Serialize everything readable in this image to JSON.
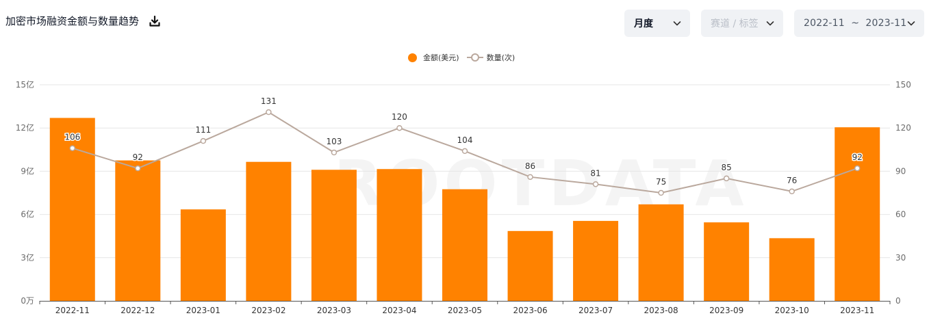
{
  "header": {
    "title": "加密市场融资金额与数量趋势",
    "download_icon": "download-icon"
  },
  "controls": {
    "period_label": "月度",
    "track_placeholder": "赛道 / 标签",
    "range_label": "2022-11  ~  2023-11"
  },
  "watermark": "ROOTDATA",
  "colors": {
    "bar": "#ff8200",
    "line": "#baa89d",
    "grid": "#e6e6e6",
    "axis_text": "#6b6b6b"
  },
  "chart_data": {
    "type": "bar",
    "legend_position": "top-center",
    "categories": [
      "2022-11",
      "2022-12",
      "2023-01",
      "2023-02",
      "2023-03",
      "2023-04",
      "2023-05",
      "2023-06",
      "2023-07",
      "2023-08",
      "2023-09",
      "2023-10",
      "2023-11"
    ],
    "series": [
      {
        "name": "金额(美元)",
        "type": "bar",
        "axis": "left",
        "values": [
          12.7,
          9.75,
          6.35,
          9.65,
          9.1,
          9.15,
          7.75,
          4.85,
          5.55,
          6.7,
          5.45,
          4.35,
          12.05
        ]
      },
      {
        "name": "数量(次)",
        "type": "line",
        "axis": "right",
        "values": [
          106,
          92,
          111,
          131,
          103,
          120,
          104,
          86,
          81,
          75,
          85,
          76,
          92
        ]
      }
    ],
    "y_left": {
      "range": [
        0,
        15
      ],
      "ticks": [
        0,
        3,
        6,
        9,
        12,
        15
      ],
      "tick_labels": [
        "0万",
        "3亿",
        "6亿",
        "9亿",
        "12亿",
        "15亿"
      ]
    },
    "y_right": {
      "range": [
        0,
        150
      ],
      "ticks": [
        0,
        30,
        60,
        90,
        120,
        150
      ],
      "tick_labels": [
        "0",
        "30",
        "60",
        "90",
        "120",
        "150"
      ]
    },
    "grid": true
  }
}
